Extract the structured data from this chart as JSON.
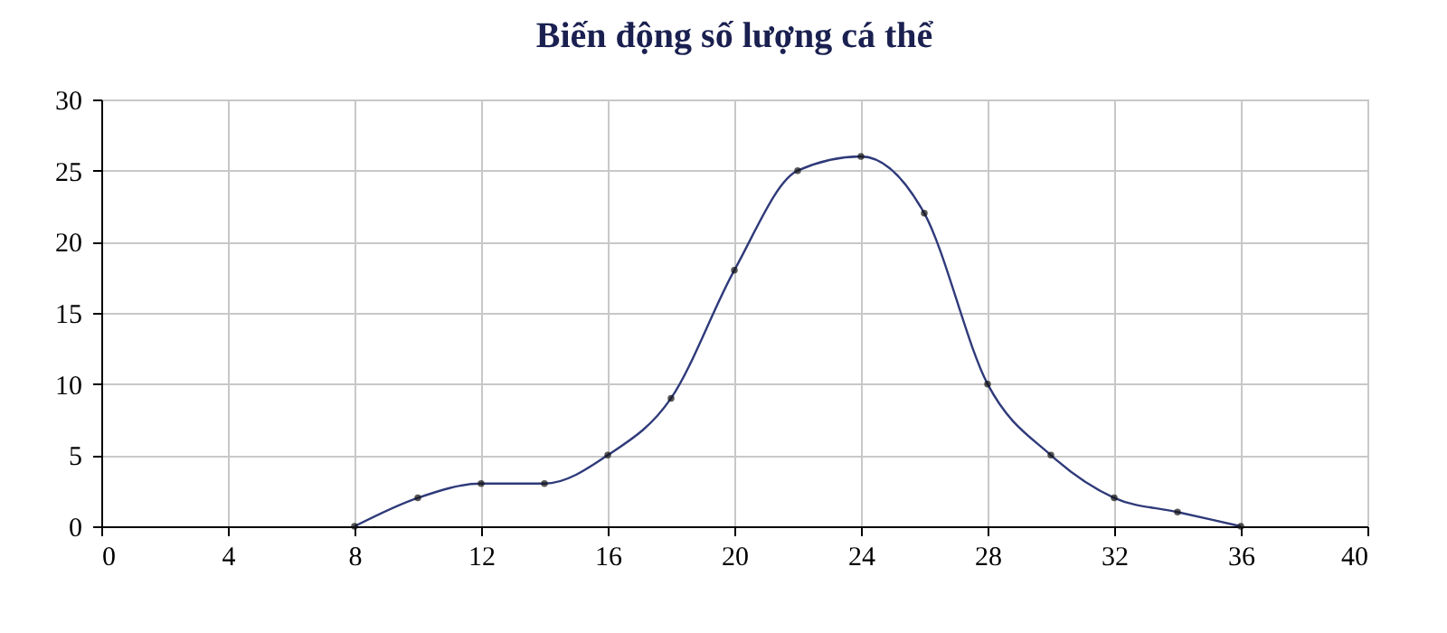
{
  "chart_data": {
    "type": "line",
    "title": "Biến động số lượng cá thể",
    "x": [
      8,
      10,
      12,
      14,
      16,
      18,
      20,
      22,
      24,
      26,
      28,
      30,
      32,
      34,
      36
    ],
    "series": [
      {
        "color": "#2f3a7a",
        "values": [
          0,
          2,
          3,
          3,
          5,
          9,
          18,
          25,
          26,
          22,
          10,
          5,
          2,
          1,
          0
        ]
      }
    ],
    "xlim": [
      0,
      40
    ],
    "xticks": [
      0,
      4,
      8,
      12,
      16,
      20,
      24,
      28,
      32,
      36,
      40
    ],
    "ylim": [
      0,
      30
    ],
    "yticks": [
      0,
      5,
      10,
      15,
      20,
      25,
      30
    ],
    "grid": true,
    "marker": "circle",
    "line_style": "solid"
  }
}
